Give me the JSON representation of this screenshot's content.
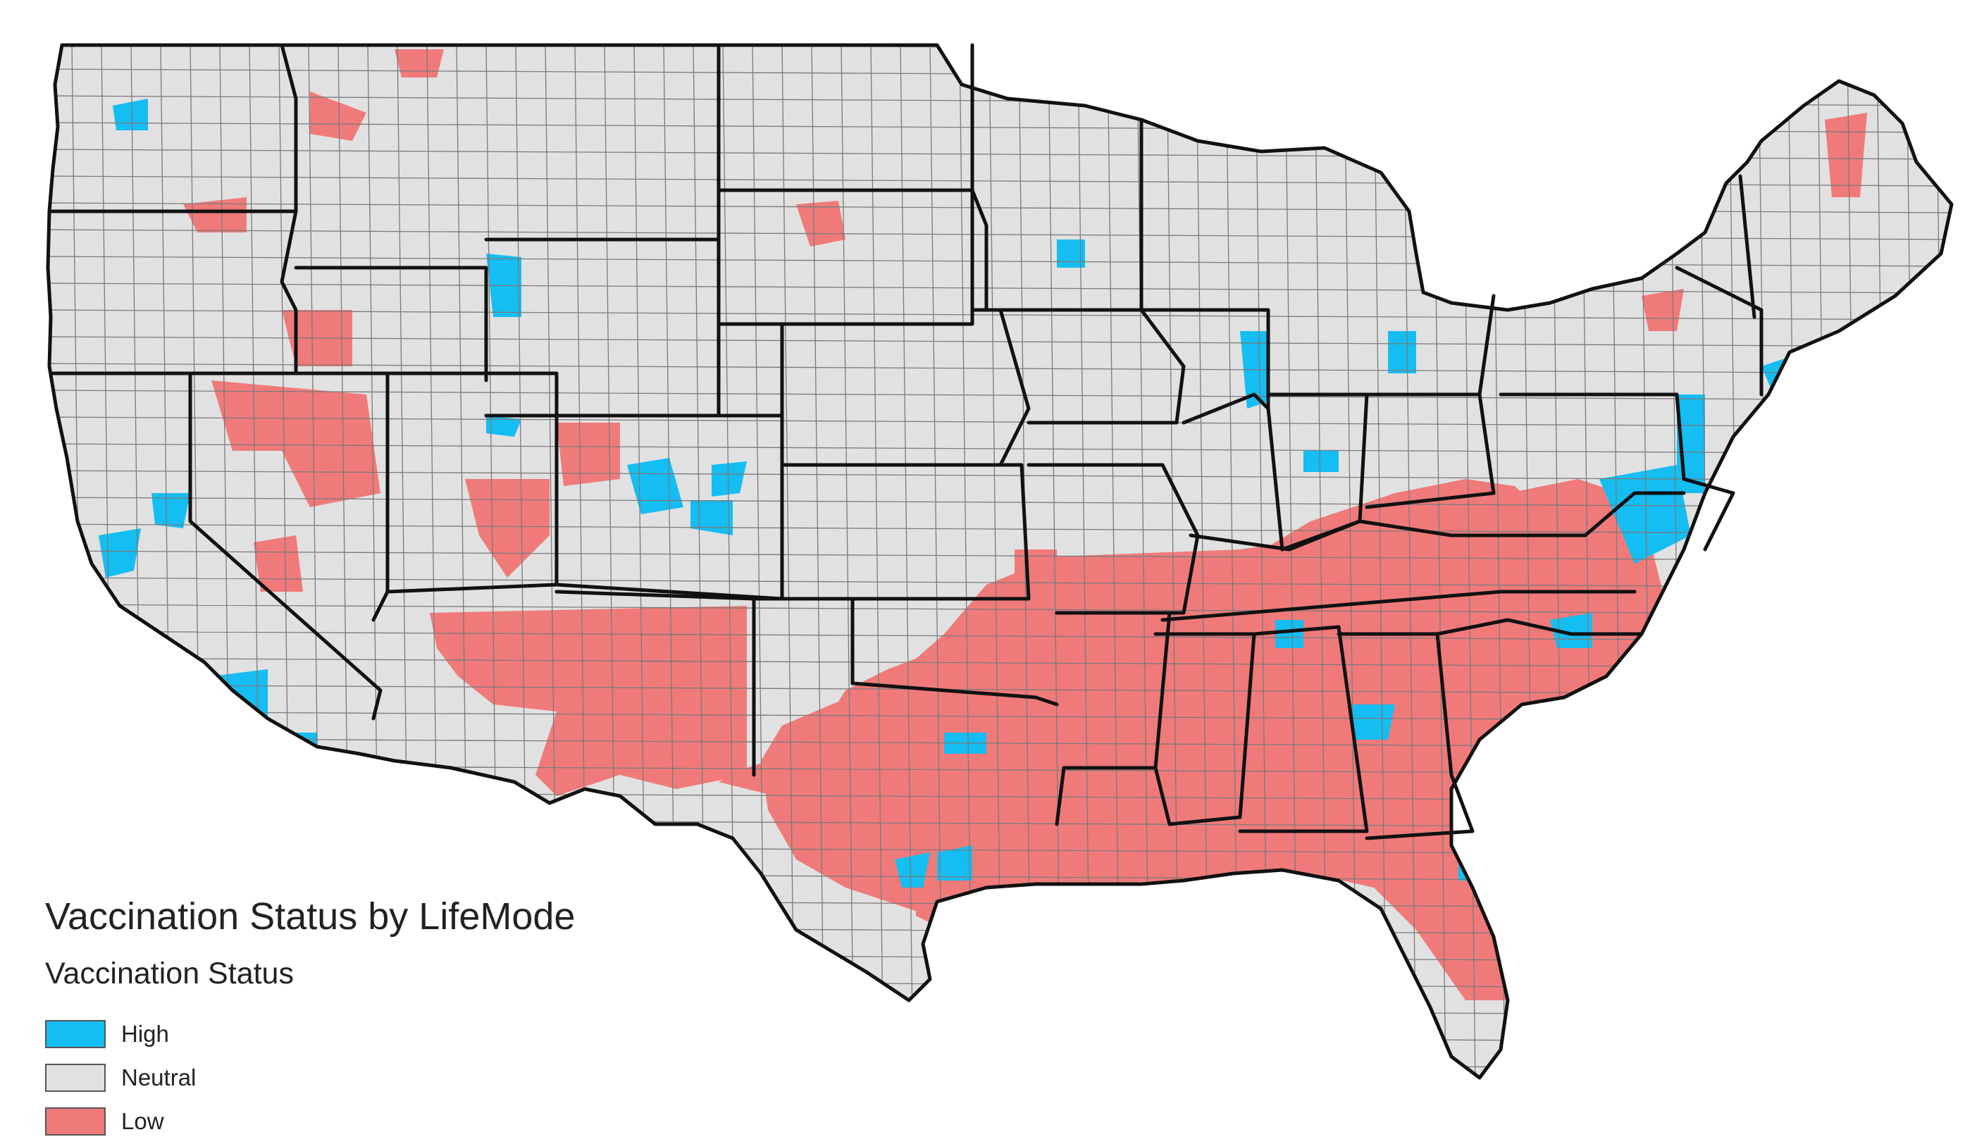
{
  "legend": {
    "title": "Vaccination Status by LifeMode",
    "subtitle": "Vaccination Status",
    "items": [
      {
        "label": "High",
        "color": "#14bdf2"
      },
      {
        "label": "Neutral",
        "color": "#e1e1e1"
      },
      {
        "label": "Low",
        "color": "#f07a7a"
      }
    ]
  },
  "colors": {
    "high": "#14bdf2",
    "neutral": "#e1e1e1",
    "low": "#f07a7a",
    "county_border": "#7a7a7a",
    "state_border": "#111111",
    "background": "#ffffff"
  }
}
